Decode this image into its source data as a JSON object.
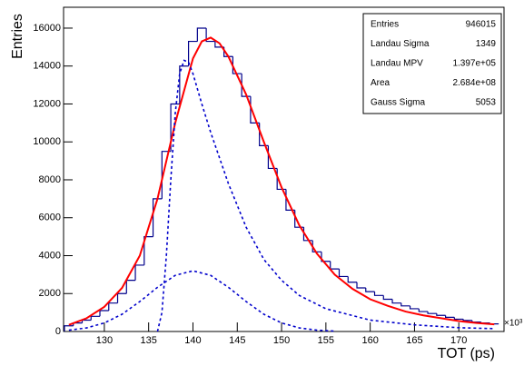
{
  "chart_data": {
    "type": "histogram",
    "ylabel": "Entries",
    "xlabel": "TOT (ps)",
    "x_multiplier": "×10³",
    "xlim": [
      125.4,
      175.1
    ],
    "ylim": [
      0,
      17100
    ],
    "xticks": [
      130,
      135,
      140,
      145,
      150,
      155,
      160,
      165,
      170
    ],
    "yticks": [
      0,
      2000,
      4000,
      6000,
      8000,
      10000,
      12000,
      14000,
      16000
    ],
    "color": "#00008b",
    "bins": [
      125.5,
      126.5,
      127.5,
      128.5,
      129.5,
      130.5,
      131.5,
      132.5,
      133.5,
      134.5,
      135.5,
      136.5,
      137.5,
      138.5,
      139.5,
      140.5,
      141.5,
      142.5,
      143.5,
      144.5,
      145.5,
      146.5,
      147.5,
      148.5,
      149.5,
      150.5,
      151.5,
      152.5,
      153.5,
      154.5,
      155.5,
      156.5,
      157.5,
      158.5,
      159.5,
      160.5,
      161.5,
      162.5,
      163.5,
      164.5,
      165.5,
      166.5,
      167.5,
      168.5,
      169.5,
      170.5,
      171.5,
      172.5,
      173.5,
      174.5
    ],
    "counts": [
      300,
      450,
      600,
      800,
      1100,
      1500,
      2000,
      2700,
      3500,
      5000,
      7000,
      9500,
      12000,
      14000,
      15300,
      16000,
      15300,
      15000,
      14500,
      13600,
      12400,
      11000,
      9800,
      8600,
      7500,
      6400,
      5500,
      4800,
      4200,
      3700,
      3300,
      2900,
      2600,
      2300,
      2100,
      1900,
      1700,
      1500,
      1350,
      1200,
      1050,
      950,
      850,
      750,
      650,
      580,
      500,
      450,
      400
    ],
    "series": [
      {
        "color": "#ff0000",
        "dash": "none",
        "x": [
          126,
          128,
          130,
          132,
          134,
          136,
          138,
          140,
          141,
          142,
          143,
          144,
          146,
          148,
          150,
          152,
          154,
          156,
          158,
          160,
          162,
          164,
          166,
          168,
          170,
          172,
          174
        ],
        "values": [
          350,
          700,
          1300,
          2300,
          4000,
          7000,
          11000,
          14400,
          15300,
          15500,
          15200,
          14500,
          12500,
          10000,
          7600,
          5600,
          4100,
          3000,
          2250,
          1700,
          1350,
          1050,
          850,
          700,
          550,
          450,
          380
        ]
      },
      {
        "color": "#0000cc",
        "dash": "3 3",
        "x": [
          136,
          136.5,
          137,
          137.5,
          138,
          138.5,
          139,
          139.5,
          140,
          141,
          142,
          144,
          146,
          148,
          150,
          152,
          155,
          160,
          165,
          170,
          174
        ],
        "values": [
          0,
          1000,
          4000,
          8000,
          11500,
          13600,
          14300,
          14200,
          13600,
          12000,
          10500,
          7800,
          5500,
          3800,
          2700,
          1900,
          1200,
          600,
          350,
          200,
          150
        ]
      },
      {
        "color": "#0000cc",
        "dash": "3 3",
        "x": [
          126,
          128,
          130,
          132,
          134,
          136,
          138,
          140,
          142,
          144,
          146,
          148,
          150,
          152,
          154,
          156
        ],
        "values": [
          70,
          190,
          450,
          910,
          1580,
          2330,
          2960,
          3200,
          2960,
          2330,
          1580,
          910,
          450,
          190,
          70,
          20
        ]
      }
    ],
    "stats": {
      "rows": [
        [
          "Entries",
          "946015"
        ],
        [
          "Landau Sigma",
          "1349"
        ],
        [
          "Landau MPV",
          "1.397e+05"
        ],
        [
          "Area",
          "2.684e+08"
        ],
        [
          "Gauss Sigma",
          "5053"
        ]
      ]
    }
  }
}
